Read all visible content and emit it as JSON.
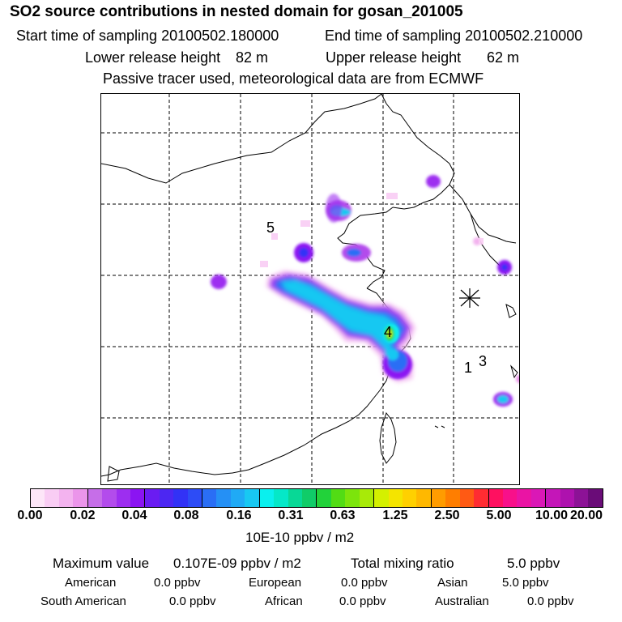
{
  "title": "SO2 source contributions in nested domain for gosan_201005",
  "header": {
    "start_label": "Start time of sampling 20100502.180000",
    "end_label": "End time of sampling 20100502.210000",
    "lower_label": "Lower release height",
    "lower_value": "82 m",
    "upper_label": "Upper release height",
    "upper_value": "62 m",
    "note": "Passive tracer used, meteorological data are from ECMWF"
  },
  "map": {
    "source_labels": [
      "5",
      "4",
      "1",
      "3"
    ]
  },
  "colorbar": {
    "ticks": [
      "0.00",
      "0.02",
      "0.04",
      "0.08",
      "0.16",
      "0.31",
      "0.63",
      "1.25",
      "2.50",
      "5.00",
      "10.00",
      "20.00"
    ],
    "unit": "10E-10 ppbv / m2",
    "colors": [
      "#fde6f8",
      "#f9cdf4",
      "#f3b3ef",
      "#eb95ea",
      "#c66ee8",
      "#b34cec",
      "#9d2ef0",
      "#8b14f2",
      "#6a1cf2",
      "#4c27f2",
      "#3232f6",
      "#2d4cf6",
      "#2a6ef5",
      "#2590f5",
      "#20aaf5",
      "#18c8f2",
      "#0af0ee",
      "#05e8c8",
      "#08d896",
      "#10cc68",
      "#22d23a",
      "#52dc14",
      "#7ce40c",
      "#a8ea08",
      "#d4f000",
      "#f4e400",
      "#ffd000",
      "#ffb800",
      "#ff9c00",
      "#ff7e00",
      "#ff5a14",
      "#ff2c32",
      "#ff1060",
      "#f8108a",
      "#ea14a4",
      "#da18b6",
      "#c416b8",
      "#ae12ae",
      "#8c1296",
      "#6a0c78"
    ]
  },
  "summary": {
    "max_label": "Maximum value",
    "max_value": "0.107E-09 ppbv / m2",
    "total_label": "Total mixing ratio",
    "total_value": "5.0 ppbv",
    "regions": [
      {
        "name": "American",
        "value": "0.0 ppbv"
      },
      {
        "name": "European",
        "value": "0.0 ppbv"
      },
      {
        "name": "Asian",
        "value": "5.0 ppbv"
      },
      {
        "name": "South American",
        "value": "0.0 ppbv"
      },
      {
        "name": "African",
        "value": "0.0 ppbv"
      },
      {
        "name": "Australian",
        "value": "0.0 ppbv"
      }
    ]
  }
}
